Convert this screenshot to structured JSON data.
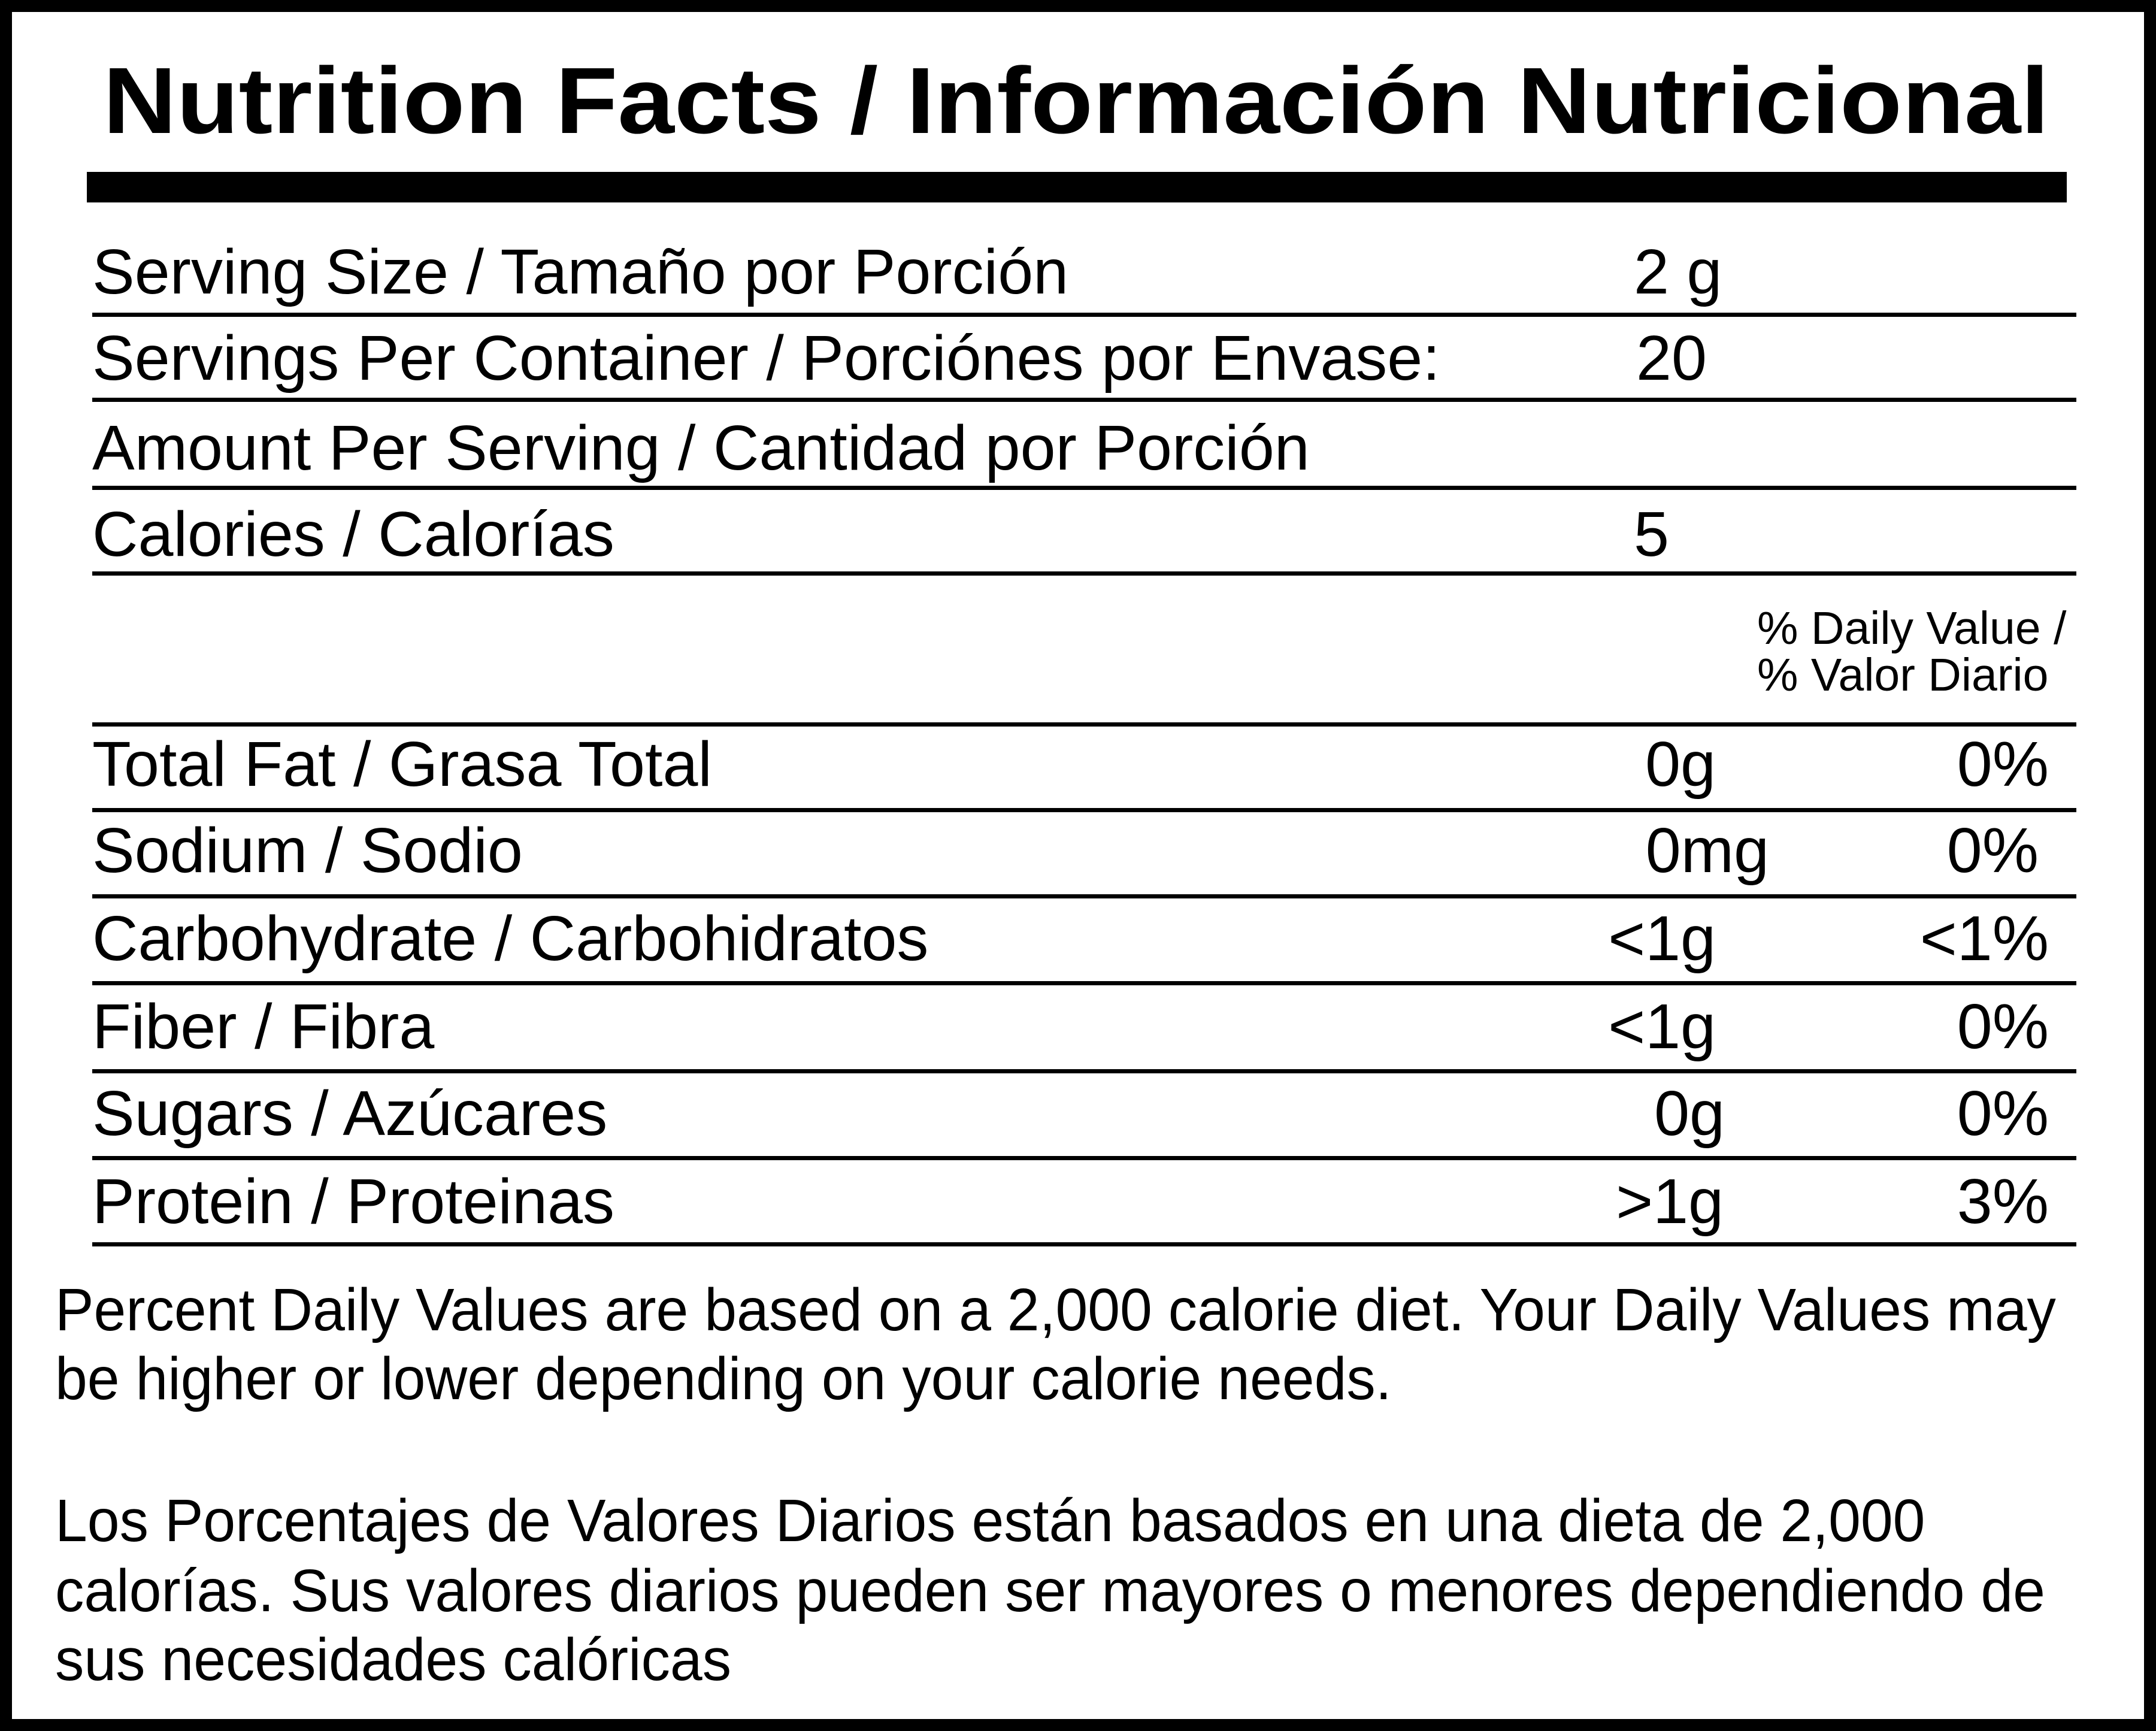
{
  "title": "Nutrition Facts / Información Nutricional",
  "serving_size": {
    "label": "Serving Size / Tamaño por Porción",
    "value": "2 g"
  },
  "servings_per_container": {
    "label": "Servings Per Container / Porciónes por Envase:",
    "value": "20"
  },
  "amount_per_serving": {
    "label": "Amount Per Serving / Cantidad por Porción"
  },
  "calories": {
    "label": "Calories / Calorías",
    "value": "5"
  },
  "daily_value_header": [
    "% Daily Value /",
    "% Valor Diario"
  ],
  "nutrients": [
    {
      "label": "Total Fat / Grasa Total",
      "amount": "0g",
      "dv": "0%"
    },
    {
      "label": "Sodium / Sodio",
      "amount": "0mg",
      "dv": "0%"
    },
    {
      "label": "Carbohydrate / Carbohidratos",
      "amount": "<1g",
      "dv": "<1%"
    },
    {
      "label": "Fiber / Fibra",
      "amount": "<1g",
      "dv": "0%"
    },
    {
      "label": "Sugars / Azúcares",
      "amount": "0g",
      "dv": "0%"
    },
    {
      "label": "Protein / Proteinas",
      "amount": ">1g",
      "dv": "3%"
    }
  ],
  "footnote_en": [
    "Percent Daily Values are based on a 2,000 calorie diet. Your Daily Values may",
    "be higher or lower depending on your calorie needs."
  ],
  "footnote_es": [
    "Los Porcentajes de Valores Diarios están basados en una dieta de 2,000",
    "calorías. Sus valores diarios pueden ser mayores o menores dependiendo de",
    "sus necesidades calóricas"
  ]
}
